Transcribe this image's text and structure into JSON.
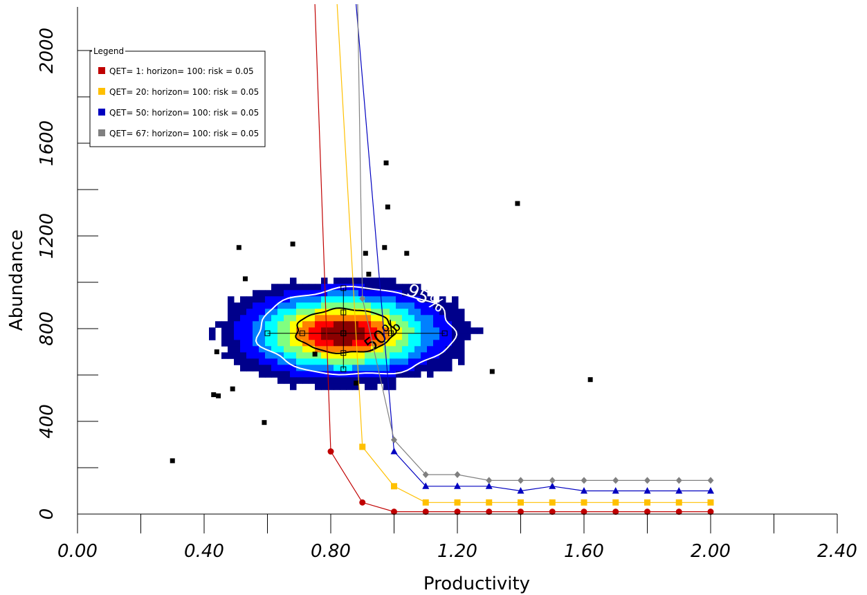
{
  "chart_data": {
    "type": "line",
    "xlabel": "Productivity",
    "ylabel": "Abundance",
    "xlim": [
      0,
      2.4
    ],
    "ylim": [
      0,
      2000
    ],
    "x_ticks": [
      0,
      0.4,
      0.8,
      1.2,
      1.6,
      2.0,
      2.4
    ],
    "x_tick_labels": [
      "0.00",
      "0.40",
      "0.80",
      "1.20",
      "1.60",
      "2.00",
      "2.40"
    ],
    "y_ticks": [
      0,
      400,
      800,
      1200,
      1600,
      2000
    ],
    "y_tick_labels": [
      "0",
      "400",
      "800",
      "1200",
      "1600",
      "2000"
    ],
    "legend": {
      "title": "Legend",
      "placement": "top-left",
      "entries": [
        {
          "label": "QET= 1: horizon= 100: risk = 0.05",
          "color": "#c00000"
        },
        {
          "label": "QET= 20: horizon= 100: risk = 0.05",
          "color": "#ffc000"
        },
        {
          "label": "QET= 50: horizon= 100: risk = 0.05",
          "color": "#0000c0"
        },
        {
          "label": "QET= 67: horizon= 100: risk = 0.05",
          "color": "#808080"
        }
      ]
    },
    "series": [
      {
        "color": "#c00000",
        "marker": "circle",
        "x": [
          0.75,
          0.8,
          0.9,
          1.0,
          1.1,
          1.2,
          1.3,
          1.4,
          1.5,
          1.6,
          1.7,
          1.8,
          1.9,
          2.0
        ],
        "y": [
          2200,
          270,
          50,
          10,
          10,
          10,
          10,
          10,
          10,
          10,
          10,
          10,
          10,
          10
        ]
      },
      {
        "color": "#ffc000",
        "marker": "square",
        "x": [
          0.82,
          0.9,
          1.0,
          1.1,
          1.2,
          1.3,
          1.4,
          1.5,
          1.6,
          1.7,
          1.8,
          1.9,
          2.0
        ],
        "y": [
          2200,
          290,
          120,
          50,
          50,
          50,
          50,
          50,
          50,
          50,
          50,
          50,
          50
        ]
      },
      {
        "color": "#0000c0",
        "marker": "triangle",
        "x": [
          0.88,
          1.0,
          1.1,
          1.2,
          1.3,
          1.4,
          1.5,
          1.6,
          1.7,
          1.8,
          1.9,
          2.0
        ],
        "y": [
          2200,
          270,
          120,
          120,
          120,
          100,
          120,
          100,
          100,
          100,
          100,
          100
        ]
      },
      {
        "color": "#808080",
        "marker": "diamond",
        "x": [
          0.885,
          0.9,
          1.0,
          1.1,
          1.2,
          1.3,
          1.4,
          1.5,
          1.6,
          1.7,
          1.8,
          1.9,
          2.0
        ],
        "y": [
          2200,
          930,
          320,
          170,
          170,
          145,
          145,
          145,
          145,
          145,
          145,
          145,
          145
        ]
      }
    ],
    "scatter_points": [
      {
        "x": 0.3,
        "y": 230
      },
      {
        "x": 0.43,
        "y": 515
      },
      {
        "x": 0.445,
        "y": 510
      },
      {
        "x": 0.44,
        "y": 700
      },
      {
        "x": 0.49,
        "y": 540
      },
      {
        "x": 0.51,
        "y": 1150
      },
      {
        "x": 0.53,
        "y": 1015
      },
      {
        "x": 0.59,
        "y": 395
      },
      {
        "x": 0.68,
        "y": 1165
      },
      {
        "x": 0.75,
        "y": 690
      },
      {
        "x": 0.88,
        "y": 565
      },
      {
        "x": 0.91,
        "y": 1125
      },
      {
        "x": 0.92,
        "y": 1035
      },
      {
        "x": 0.97,
        "y": 1150
      },
      {
        "x": 0.975,
        "y": 1515
      },
      {
        "x": 0.98,
        "y": 1325
      },
      {
        "x": 1.04,
        "y": 1125
      },
      {
        "x": 1.31,
        "y": 615
      },
      {
        "x": 1.39,
        "y": 1340
      },
      {
        "x": 1.62,
        "y": 580
      }
    ],
    "density_heatmap": {
      "center": {
        "x": 0.84,
        "y": 780
      },
      "x_range": [
        0.5,
        1.31
      ],
      "y_range": [
        570,
        1050
      ],
      "colormap": [
        "#00008b",
        "#0000ff",
        "#0080ff",
        "#00ffff",
        "#80ff80",
        "#ffff00",
        "#ff8000",
        "#ff0000",
        "#8b0000"
      ]
    },
    "contours": [
      {
        "label": "95%",
        "color": "#ffffff",
        "x_range": [
          0.57,
          1.19
        ],
        "y_range": [
          600,
          975
        ]
      },
      {
        "label": "50%",
        "color": "#000000",
        "x_range": [
          0.69,
          1.0
        ],
        "y_range": [
          695,
          885
        ]
      }
    ],
    "error_bars": {
      "center": {
        "x": 0.84,
        "y": 780
      },
      "x_points": [
        0.6,
        0.71,
        0.84,
        0.99,
        1.16
      ],
      "y_points": [
        625,
        695,
        780,
        870,
        975
      ]
    }
  }
}
